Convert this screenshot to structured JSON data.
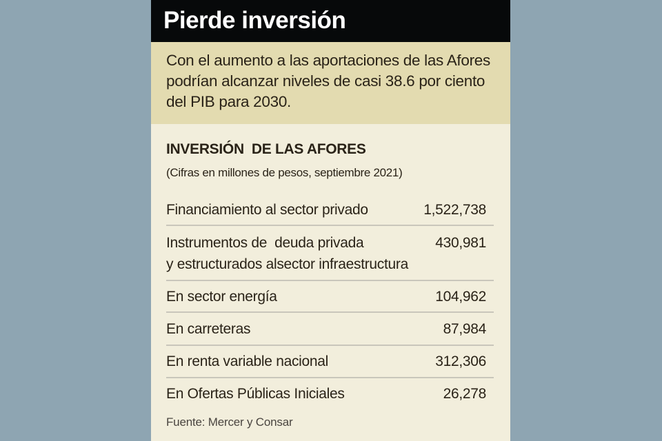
{
  "header": {
    "title": "Pierde inversión"
  },
  "intro": {
    "text": "Con el aumento a las aportaciones de las Afores podrían alcanzar niveles de casi 38.6 por ciento del PIB para 2030."
  },
  "table": {
    "title": "INVERSIÓN  DE LAS AFORES",
    "subtitle": "(Cifras en millones de pesos, septiembre 2021)",
    "rows": [
      {
        "label": "Financiamiento al sector privado",
        "value": "1,522,738"
      },
      {
        "label": "Instrumentos de  deuda privada",
        "label2": "y estructurados alsector infraestructura",
        "value": "430,981"
      },
      {
        "label": "En sector energía",
        "value": "104,962"
      },
      {
        "label": "En carreteras",
        "value": "87,984"
      },
      {
        "label": "En renta variable nacional",
        "value": "312,306"
      },
      {
        "label": "En Ofertas Públicas Iniciales",
        "value": "26,278"
      }
    ]
  },
  "source": "Fuente: Mercer y Consar"
}
